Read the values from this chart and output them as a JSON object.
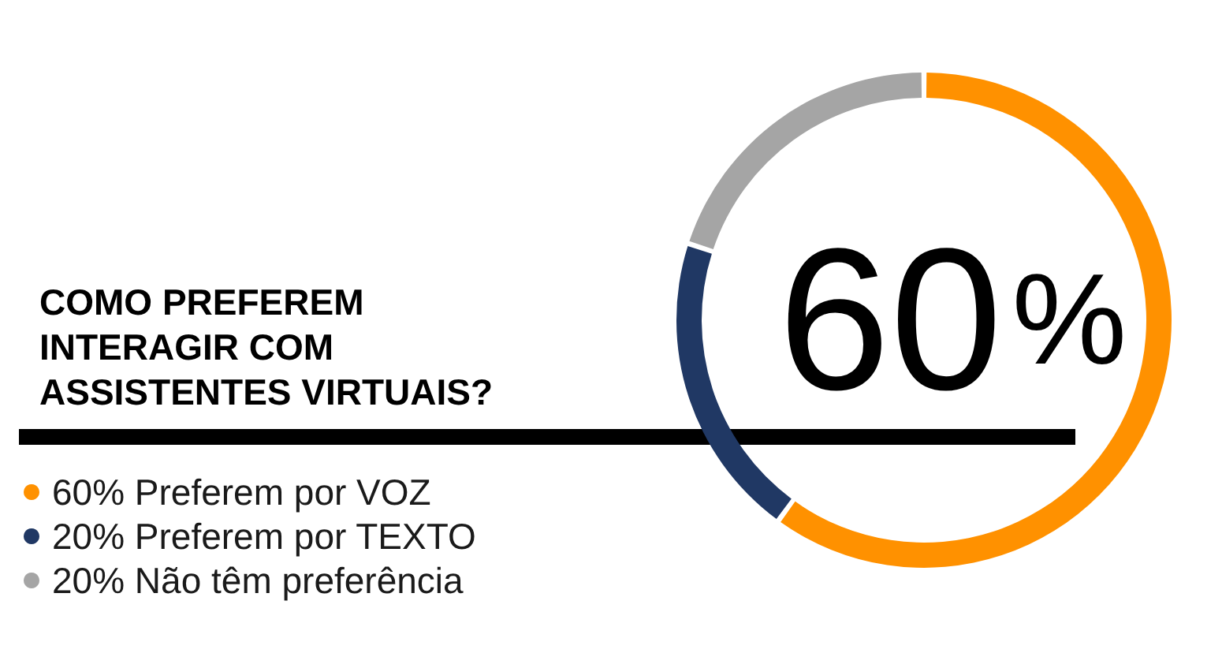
{
  "chart_data": {
    "type": "donut",
    "title": "COMO PREFEREM INTERAGIR COM ASSISTENTES VIRTUAIS?",
    "categories": [
      "60% Preferem por VOZ",
      "20% Preferem por TEXTO",
      "20% Não têm preferência"
    ],
    "values": [
      60,
      20,
      20
    ],
    "colors": [
      "#ff9100",
      "#203864",
      "#a5a5a5"
    ],
    "legend": "bottom left",
    "annotations": [
      "60%"
    ]
  }
}
